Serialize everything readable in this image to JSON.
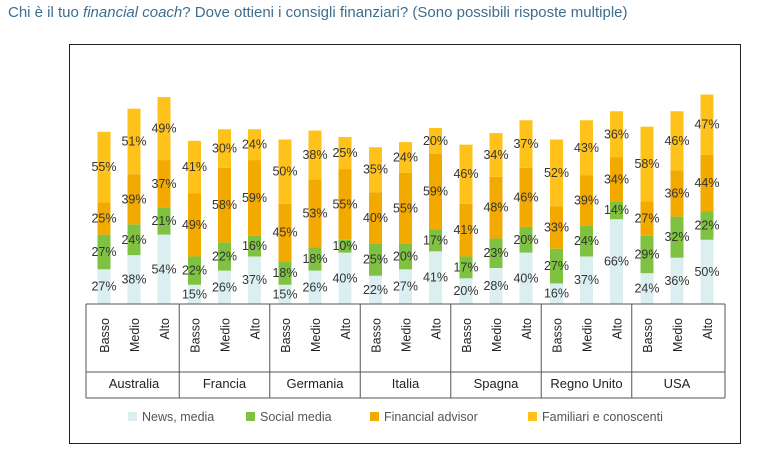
{
  "title": {
    "before": "Chi è il tuo ",
    "italic": "financial coach",
    "after": "? Dove ottieni i consigli finanziari? (Sono possibili risposte multiple)"
  },
  "colors": {
    "News, media": "#dbeef0",
    "Social media": "#7fc241",
    "Financial advisor": "#f2a900",
    "Familiari e conoscenti": "#ffc21a"
  },
  "chart_data": {
    "type": "bar",
    "stacked": true,
    "groups": [
      "Australia",
      "Francia",
      "Germania",
      "Italia",
      "Spagna",
      "Regno Unito",
      "USA"
    ],
    "categories": [
      "Basso",
      "Medio",
      "Alto"
    ],
    "series": [
      {
        "name": "News, media",
        "values": [
          [
            27,
            38,
            54
          ],
          [
            15,
            26,
            37
          ],
          [
            15,
            26,
            40
          ],
          [
            22,
            27,
            41
          ],
          [
            20,
            28,
            40
          ],
          [
            16,
            37,
            66
          ],
          [
            24,
            36,
            50
          ]
        ]
      },
      {
        "name": "Social media",
        "values": [
          [
            27,
            24,
            21
          ],
          [
            22,
            22,
            16
          ],
          [
            18,
            18,
            10
          ],
          [
            25,
            20,
            17
          ],
          [
            17,
            23,
            20
          ],
          [
            27,
            24,
            14
          ],
          [
            29,
            32,
            22
          ]
        ]
      },
      {
        "name": "Financial advisor",
        "values": [
          [
            25,
            39,
            37
          ],
          [
            49,
            58,
            59
          ],
          [
            45,
            53,
            55
          ],
          [
            40,
            55,
            59
          ],
          [
            41,
            48,
            46
          ],
          [
            33,
            39,
            34
          ],
          [
            27,
            36,
            44
          ]
        ]
      },
      {
        "name": "Familiari e conoscenti",
        "values": [
          [
            55,
            51,
            49
          ],
          [
            41,
            30,
            24
          ],
          [
            50,
            38,
            25
          ],
          [
            35,
            24,
            20
          ],
          [
            46,
            34,
            37
          ],
          [
            52,
            43,
            36
          ],
          [
            58,
            46,
            47
          ]
        ]
      }
    ],
    "legend_position": "bottom"
  }
}
